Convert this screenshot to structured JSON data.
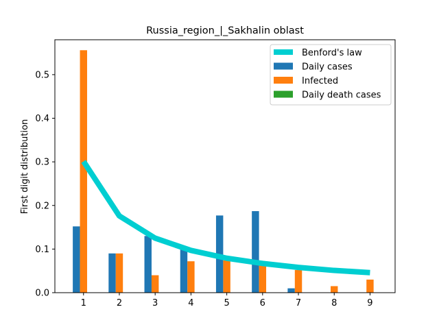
{
  "chart_data": {
    "type": "bar",
    "title": "Russia_region_|_Sakhalin oblast",
    "xlabel": "",
    "ylabel": "First digit distribution",
    "categories": [
      "1",
      "2",
      "3",
      "4",
      "5",
      "6",
      "7",
      "8",
      "9"
    ],
    "x": [
      1,
      2,
      3,
      4,
      5,
      6,
      7,
      8,
      9
    ],
    "xlim": [
      0.2,
      9.7
    ],
    "ylim": [
      0,
      0.58
    ],
    "yticks": [
      "0.0",
      "0.1",
      "0.2",
      "0.3",
      "0.4",
      "0.5"
    ],
    "grid": false,
    "legend_position": "top-right",
    "series": [
      {
        "name": "Benford's law",
        "kind": "line",
        "color": "#00CED1",
        "values": [
          0.301,
          0.176,
          0.125,
          0.097,
          0.079,
          0.067,
          0.058,
          0.051,
          0.046
        ]
      },
      {
        "name": "Daily cases",
        "kind": "bar",
        "color": "#1f77b4",
        "values": [
          0.152,
          0.09,
          0.13,
          0.1,
          0.177,
          0.187,
          0.01,
          0.0,
          0.0
        ]
      },
      {
        "name": "Infected",
        "kind": "bar",
        "color": "#ff7f0e",
        "values": [
          0.556,
          0.09,
          0.04,
          0.072,
          0.074,
          0.063,
          0.052,
          0.015,
          0.03
        ]
      },
      {
        "name": "Daily death cases",
        "kind": "bar",
        "color": "#2ca02c",
        "values": [
          0,
          0,
          0,
          0,
          0,
          0,
          0,
          0,
          0
        ]
      }
    ]
  }
}
